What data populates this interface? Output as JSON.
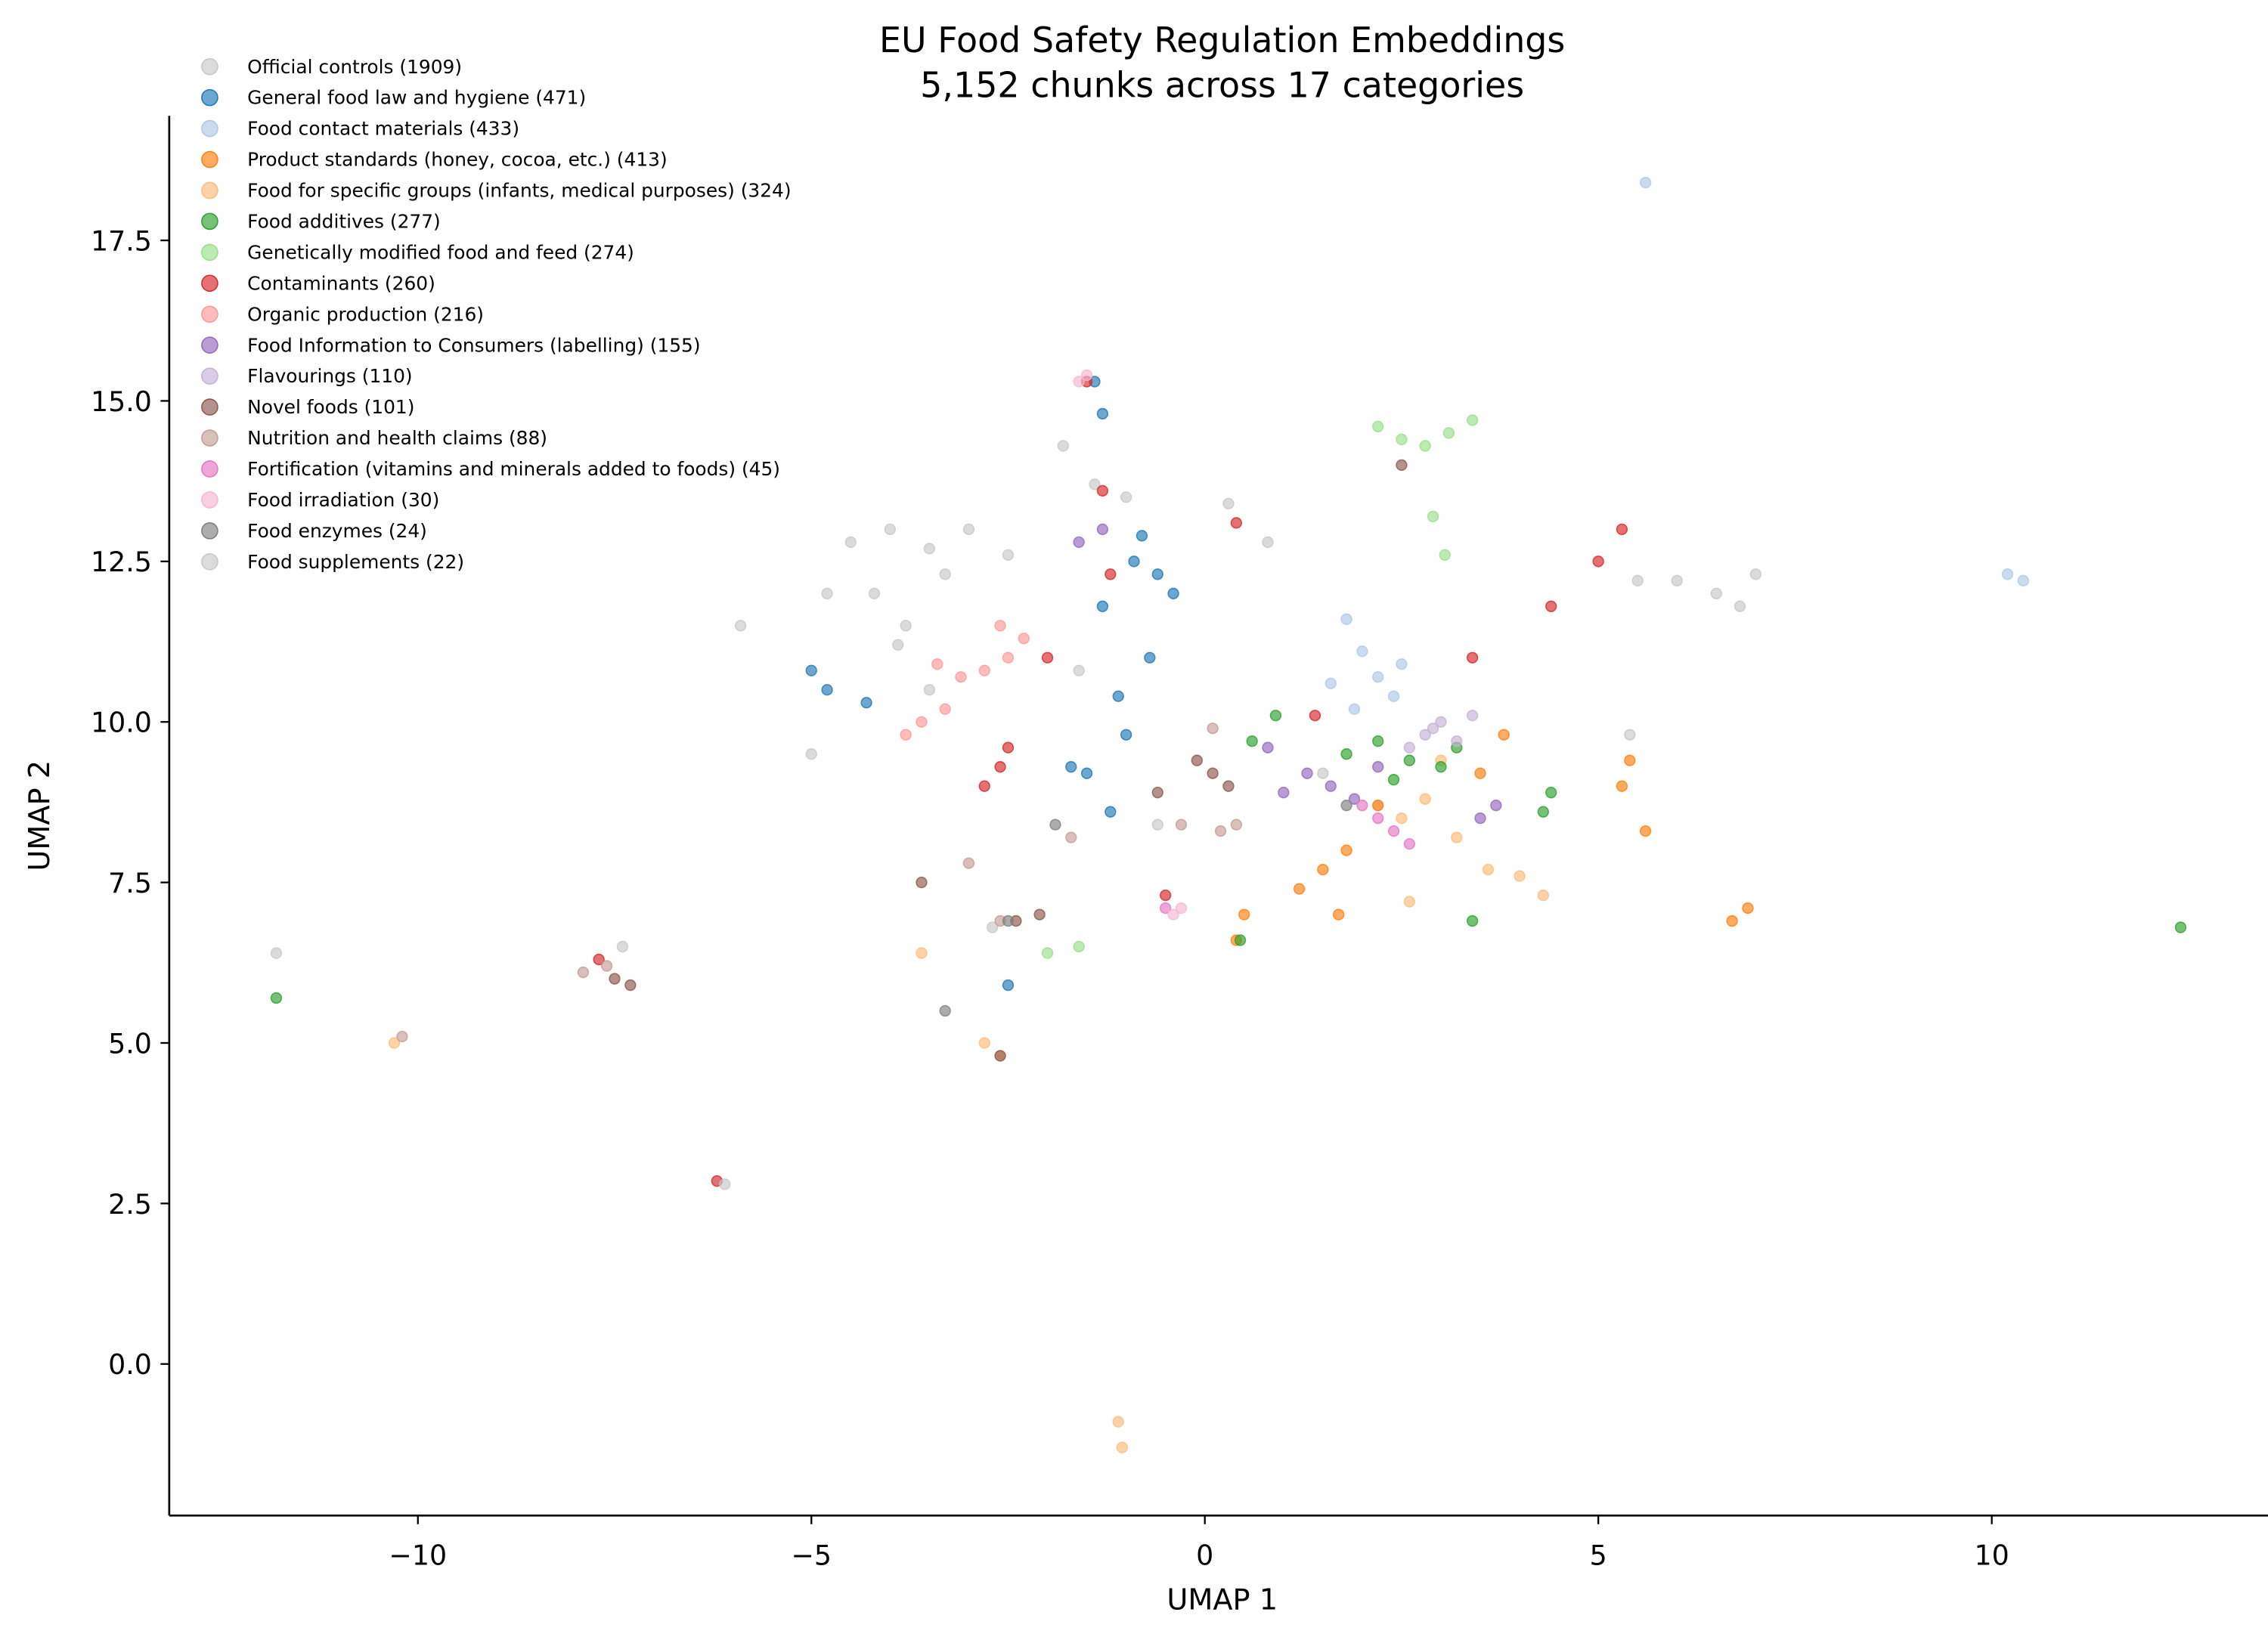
{
  "chart_data": {
    "type": "scatter",
    "title": "EU Food Safety Regulation Embeddings",
    "subtitle": "5,152 chunks across 17 categories",
    "x_label": "UMAP 1",
    "y_label": "UMAP 2",
    "xlim": [
      -13.16,
      13.51
    ],
    "ylim": [
      -2.36,
      19.44
    ],
    "xticks": [
      {
        "value": -10,
        "label": "−10"
      },
      {
        "value": -5,
        "label": "−5"
      },
      0,
      5,
      10
    ],
    "yticks": [
      {
        "value": 0,
        "label": "0.0"
      },
      2.5,
      {
        "value": 5,
        "label": "5.0"
      },
      7.5,
      {
        "value": 10,
        "label": "10.0"
      },
      12.5,
      {
        "value": 15,
        "label": "15.0"
      },
      17.5
    ],
    "legend": "upper left",
    "grid": false,
    "series": [
      {
        "name": "Official controls (1909)",
        "color": "#c7c7c7",
        "x": [
          -4.5,
          -4,
          -3.5,
          -3,
          -2.5,
          -4.2,
          -3.8,
          -3.3,
          -1.8,
          -1.4,
          -1,
          0.3,
          0.8,
          6,
          6.5,
          7,
          6.8,
          5.5,
          5.4,
          -5,
          -5.9,
          -3.5,
          -2.7,
          -1.6,
          1.5,
          2.2,
          -4.8,
          -3.9
        ],
        "y": [
          12.8,
          13,
          12.7,
          13,
          12.6,
          12,
          11.5,
          12.3,
          14.3,
          13.7,
          13.5,
          13.4,
          12.8,
          12.2,
          12,
          12.3,
          11.8,
          12.2,
          9.8,
          9.5,
          11.5,
          10.5,
          6.8,
          10.8,
          9.2,
          8.7,
          12,
          11.2
        ]
      },
      {
        "name": "General food law and hygiene (471)",
        "color": "#1f77b4",
        "x": [
          -5,
          -4.8,
          -4.3,
          -1.4,
          -1.3,
          -1.5,
          -1.2,
          -1,
          -0.8,
          -0.6,
          -1.3,
          -1.1,
          -1.7,
          -0.4,
          -0.9,
          -2.5,
          -0.7
        ],
        "y": [
          10.8,
          10.5,
          10.3,
          15.3,
          14.8,
          9.2,
          8.6,
          9.8,
          12.9,
          12.3,
          11.8,
          10.4,
          9.3,
          12,
          12.5,
          5.9,
          11
        ]
      },
      {
        "name": "Food contact materials (433)",
        "color": "#aec7e8",
        "x": [
          1.8,
          2,
          2.2,
          1.6,
          2.5,
          2.4,
          1.9,
          10.2,
          10.4,
          5.6
        ],
        "y": [
          11.6,
          11.1,
          10.7,
          10.6,
          10.9,
          10.4,
          10.2,
          12.3,
          12.2,
          18.4
        ]
      },
      {
        "name": "Product standards (honey, cocoa, etc.) (413)",
        "color": "#ff7f0e",
        "x": [
          1.5,
          1.8,
          2.2,
          1.2,
          1.7,
          5.4,
          5.6,
          5.3,
          6.7,
          6.9,
          3.5,
          0.5,
          0.4,
          3.8
        ],
        "y": [
          7.7,
          8,
          8.7,
          7.4,
          7,
          9.4,
          8.3,
          9,
          6.9,
          7.1,
          9.2,
          7,
          6.6,
          9.8
        ]
      },
      {
        "name": "Food for specific groups (infants, medical purposes) (324)",
        "color": "#ffbb78",
        "x": [
          2.5,
          2.8,
          3.2,
          3.6,
          4,
          4.3,
          2.6,
          3,
          -1.1,
          -1.05,
          -2.8,
          -2.6,
          -3.6,
          -10.3
        ],
        "y": [
          8.5,
          8.8,
          8.2,
          7.7,
          7.6,
          7.3,
          7.2,
          9.4,
          -0.9,
          -1.3,
          5,
          4.8,
          6.4,
          5
        ]
      },
      {
        "name": "Food additives (277)",
        "color": "#2ca02c",
        "x": [
          1.8,
          2.2,
          2.6,
          3,
          3.2,
          2.4,
          0.6,
          0.9,
          4.4,
          4.3,
          3.4,
          12.4,
          -11.8,
          0.45
        ],
        "y": [
          9.5,
          9.7,
          9.4,
          9.3,
          9.6,
          9.1,
          9.7,
          10.1,
          8.9,
          8.6,
          6.9,
          6.8,
          5.7,
          6.6
        ]
      },
      {
        "name": "Genetically modified food and feed (274)",
        "color": "#98df8a",
        "x": [
          2.2,
          2.5,
          2.8,
          3.1,
          3.4,
          2.9,
          3.05,
          -1.6,
          -2
        ],
        "y": [
          14.6,
          14.4,
          14.3,
          14.5,
          14.7,
          13.2,
          12.6,
          6.5,
          6.4
        ]
      },
      {
        "name": "Contaminants (260)",
        "color": "#d62728",
        "x": [
          -2.6,
          -2.8,
          -2.5,
          -1.3,
          0.4,
          -1.2,
          -1.5,
          3.4,
          5,
          5.3,
          4.4,
          -0.5,
          -7.7,
          -6.2,
          -2,
          1.4
        ],
        "y": [
          9.3,
          9,
          9.6,
          13.6,
          13.1,
          12.3,
          15.3,
          11,
          12.5,
          13,
          11.8,
          7.3,
          6.3,
          2.85,
          11,
          10.1
        ]
      },
      {
        "name": "Organic production (216)",
        "color": "#ff9896",
        "x": [
          -3.6,
          -3.4,
          -3.1,
          -2.8,
          -2.5,
          -2.3,
          -3.8,
          -3.3,
          -2.6
        ],
        "y": [
          10,
          10.9,
          10.7,
          10.8,
          11,
          11.3,
          9.8,
          10.2,
          11.5
        ]
      },
      {
        "name": "Food Information to Consumers (labelling) (155)",
        "color": "#9467bd",
        "x": [
          1,
          1.3,
          1.6,
          1.9,
          2.2,
          3.5,
          3.7,
          0.8,
          -1.6,
          -1.3
        ],
        "y": [
          8.9,
          9.2,
          9,
          8.8,
          9.3,
          8.5,
          8.7,
          9.6,
          12.8,
          13
        ]
      },
      {
        "name": "Flavourings (110)",
        "color": "#c5b0d5",
        "x": [
          2.8,
          3,
          3.2,
          3.4,
          2.6,
          2.9
        ],
        "y": [
          9.8,
          10,
          9.7,
          10.1,
          9.6,
          9.9
        ]
      },
      {
        "name": "Novel foods (101)",
        "color": "#8c564b",
        "x": [
          -0.1,
          0.1,
          0.3,
          -0.6,
          -7.5,
          -7.3,
          -3.6,
          -2.4,
          -2.1,
          2.5,
          -2.6
        ],
        "y": [
          9.4,
          9.2,
          9,
          8.9,
          6,
          5.9,
          7.5,
          6.9,
          7,
          14,
          4.8
        ]
      },
      {
        "name": "Nutrition and health claims (88)",
        "color": "#c49c94",
        "x": [
          0.2,
          0.4,
          -0.3,
          -7.9,
          -7.6,
          -3,
          -2.6,
          0.1,
          -10.2,
          -1.7
        ],
        "y": [
          8.3,
          8.4,
          8.4,
          6.1,
          6.2,
          7.8,
          6.9,
          9.9,
          5.1,
          8.2
        ]
      },
      {
        "name": "Fortification (vitamins and minerals added to foods) (45)",
        "color": "#e377c2",
        "x": [
          2.2,
          2.4,
          2,
          2.6,
          -0.5
        ],
        "y": [
          8.5,
          8.3,
          8.7,
          8.1,
          7.1
        ]
      },
      {
        "name": "Food irradiation (30)",
        "color": "#f7b6d2",
        "x": [
          -0.4,
          -0.3,
          -1.6,
          -1.5
        ],
        "y": [
          7,
          7.1,
          15.3,
          15.4
        ]
      },
      {
        "name": "Food enzymes (24)",
        "color": "#7f7f7f",
        "x": [
          -2.5,
          -3.3,
          -1.9,
          1.8
        ],
        "y": [
          6.9,
          5.5,
          8.4,
          8.7
        ]
      },
      {
        "name": "Food supplements (22)",
        "color": "#c7c7c7",
        "x": [
          -11.8,
          -6.1,
          -7.4,
          -0.6
        ],
        "y": [
          6.4,
          2.8,
          6.5,
          8.4
        ]
      }
    ]
  }
}
